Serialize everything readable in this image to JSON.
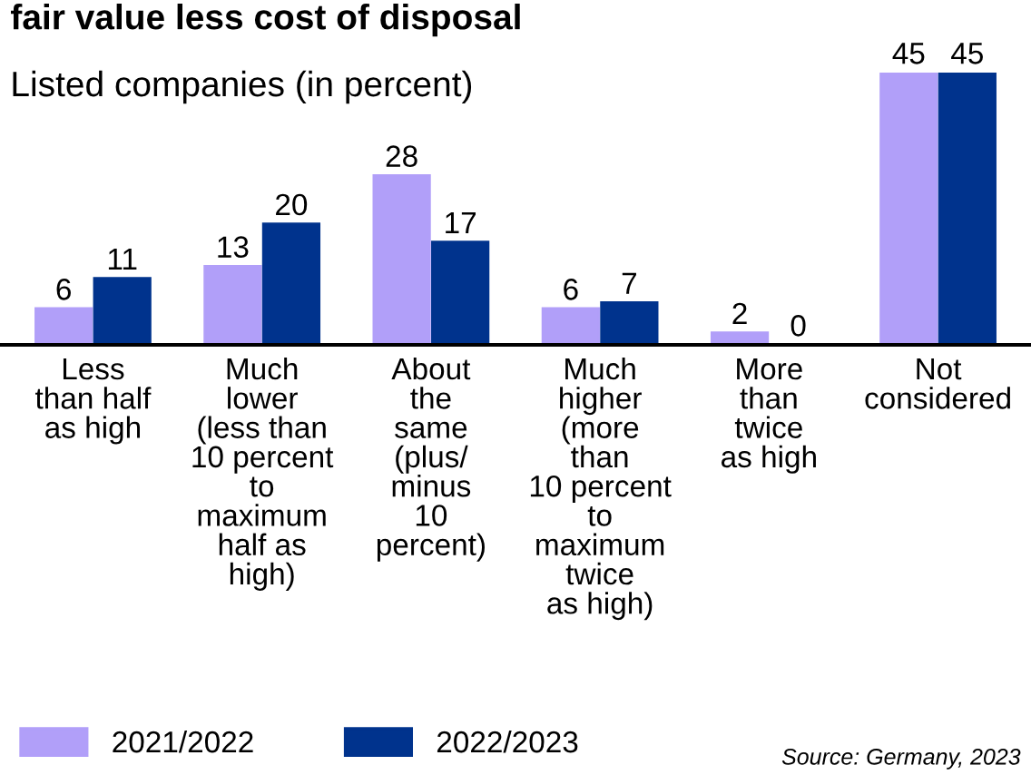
{
  "chart_data": {
    "type": "bar",
    "title": "fair value less cost of disposal",
    "subtitle": "Listed companies (in percent)",
    "categories": [
      "Less\nthan half\nas high",
      "Much\nlower\n(less than\n10 percent\nto\nmaximum\nhalf as\nhigh)",
      "About\nthe\nsame\n(plus/\nminus\n10\npercent)",
      "Much\nhigher\n(more\nthan\n10 percent\nto\nmaximum\ntwice\nas high)",
      "More\nthan\ntwice\nas high",
      "Not\nconsidered"
    ],
    "series": [
      {
        "name": "2021/2022",
        "color": "#b19ff9",
        "values": [
          6,
          13,
          28,
          6,
          2,
          45
        ]
      },
      {
        "name": "2022/2023",
        "color": "#00338d",
        "values": [
          11,
          20,
          17,
          7,
          0,
          45
        ]
      }
    ],
    "data_labels": true,
    "legend": "bottom left",
    "grid": false,
    "annotations": [
      "Source: Germany, 2023"
    ]
  }
}
